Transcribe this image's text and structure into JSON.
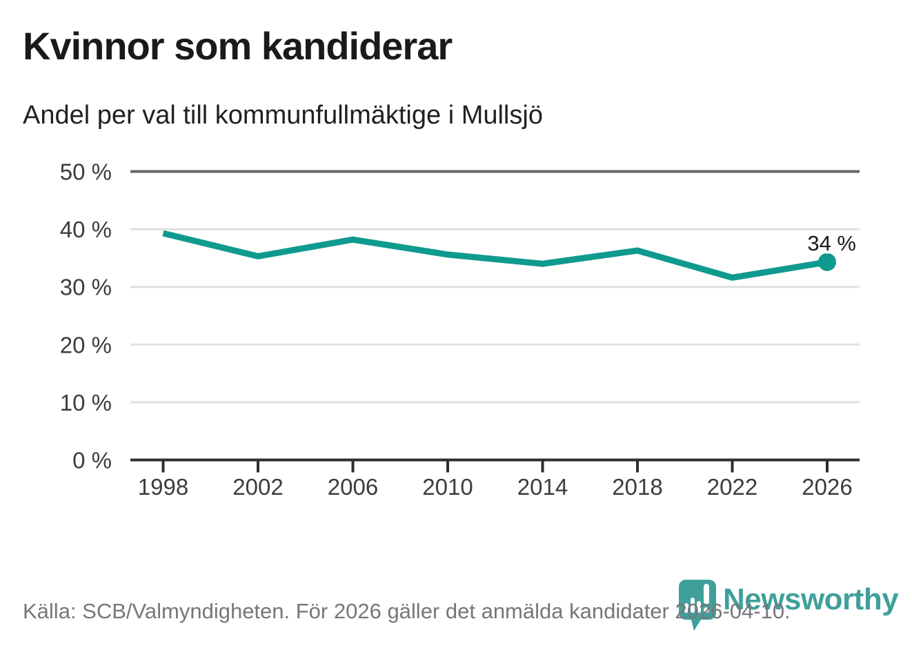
{
  "header": {
    "title": "Kvinnor som kandiderar",
    "subtitle": "Andel per val till kommunfullmäktige i Mullsjö"
  },
  "chart_data": {
    "type": "line",
    "title": "Kvinnor som kandiderar",
    "subtitle": "Andel per val till kommunfullmäktige i Mullsjö",
    "x": [
      1998,
      2002,
      2006,
      2010,
      2014,
      2018,
      2022,
      2026
    ],
    "x_tick_labels": [
      "1998",
      "2002",
      "2006",
      "2010",
      "2014",
      "2018",
      "2022",
      "2026"
    ],
    "values": [
      39.3,
      35.3,
      38.2,
      35.6,
      34.0,
      36.3,
      31.6,
      34.3
    ],
    "unit": "%",
    "ylim": [
      0,
      50
    ],
    "y_ticks": [
      {
        "value": 0,
        "label": "0 %"
      },
      {
        "value": 10,
        "label": "10 %"
      },
      {
        "value": 20,
        "label": "20 %"
      },
      {
        "value": 30,
        "label": "30 %"
      },
      {
        "value": 40,
        "label": "40 %"
      },
      {
        "value": 50,
        "label": "50 %"
      }
    ],
    "end_label": "34 %",
    "grid": true,
    "legend": "none",
    "colors": {
      "line": "#0f9a8e",
      "marker": "#0f9a8e",
      "grid_light": "#e0e0e0",
      "plot_top_border": "#63666b",
      "axis": "#2e2e2e",
      "tick_text": "#3c3c3c",
      "annotation_text": "#1a1a1a"
    }
  },
  "footer": {
    "source": "Källa: SCB/Valmyndigheten. För 2026 gäller det anmälda kandidater 2026-04-10."
  },
  "branding": {
    "logo_text": "Newsworthy",
    "logo_color": "#3fa09b",
    "icon": "newsworthy-pin-barchart-icon"
  }
}
